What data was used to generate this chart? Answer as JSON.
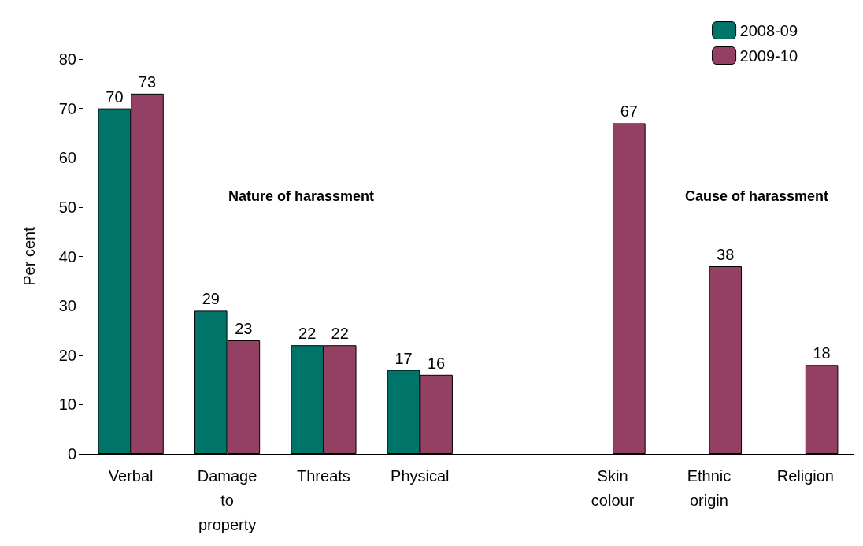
{
  "chart_data": {
    "type": "bar",
    "ylabel": "Per cent",
    "categories": [
      "Verbal",
      "Damage\nto\nproperty",
      "Threats",
      "Physical",
      null,
      "Skin\ncolour",
      "Ethnic\norigin",
      "Religion"
    ],
    "series": [
      {
        "name": "2008-09",
        "color": "#007468",
        "values": [
          70,
          29,
          22,
          17,
          null,
          null,
          null,
          null
        ]
      },
      {
        "name": "2009-10",
        "color": "#944064",
        "values": [
          73,
          23,
          22,
          16,
          null,
          67,
          38,
          18
        ]
      }
    ],
    "ylim": [
      0,
      80
    ],
    "yticks": [
      0,
      10,
      20,
      30,
      40,
      50,
      60,
      70,
      80
    ],
    "grid": false,
    "legend": "top right",
    "data_labels": true,
    "annotations": [
      "Nature of harassment",
      "Cause of harassment"
    ]
  }
}
